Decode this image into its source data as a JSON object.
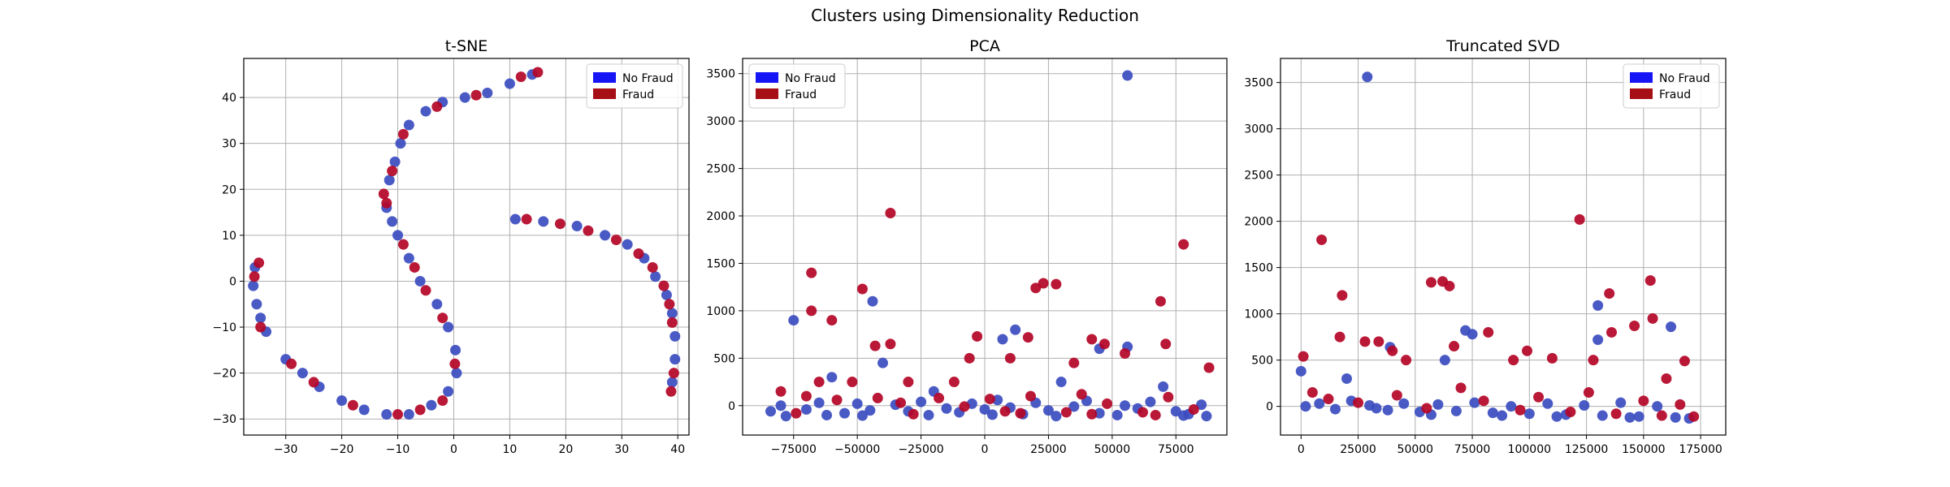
{
  "figure": {
    "suptitle": "Clusters using Dimensionality Reduction"
  },
  "colors": {
    "no_fraud": "#1515f5",
    "fraud": "#a50f15",
    "no_fraud_point": "#3b4cc0",
    "fraud_point": "#b40426",
    "grid": "#b0b0b0"
  },
  "chart_data": [
    {
      "type": "scatter",
      "title": "t-SNE",
      "xlabel": "",
      "ylabel": "",
      "xlim": [
        -37.5,
        42
      ],
      "ylim": [
        -33.5,
        48.5
      ],
      "xticks": [
        -30,
        -20,
        -10,
        0,
        10,
        20,
        30,
        40
      ],
      "yticks": [
        -30,
        -20,
        -10,
        0,
        10,
        20,
        30,
        40
      ],
      "grid": true,
      "legend": {
        "position": "top-right",
        "entries": [
          "No Fraud",
          "Fraud"
        ]
      },
      "series": [
        {
          "name": "No Fraud",
          "points": [
            [
              -35.5,
              3
            ],
            [
              -35.8,
              -1
            ],
            [
              -35.2,
              -5
            ],
            [
              -34.5,
              -8
            ],
            [
              -33.5,
              -11
            ],
            [
              -30,
              -17
            ],
            [
              -27,
              -20
            ],
            [
              -24,
              -23
            ],
            [
              -20,
              -26
            ],
            [
              -16,
              -28
            ],
            [
              -12,
              -29
            ],
            [
              -8,
              -29
            ],
            [
              -4,
              -27
            ],
            [
              -1,
              -24
            ],
            [
              0.5,
              -20
            ],
            [
              0.3,
              -15
            ],
            [
              -1,
              -10
            ],
            [
              -3,
              -5
            ],
            [
              -6,
              0
            ],
            [
              -8,
              5
            ],
            [
              -10,
              10
            ],
            [
              -11,
              13
            ],
            [
              -12,
              16
            ],
            [
              -11.5,
              22
            ],
            [
              -10.5,
              26
            ],
            [
              -9.5,
              30
            ],
            [
              -8,
              34
            ],
            [
              -5,
              37
            ],
            [
              -2,
              39
            ],
            [
              2,
              40
            ],
            [
              6,
              41
            ],
            [
              10,
              43
            ],
            [
              14,
              45
            ],
            [
              11,
              13.5
            ],
            [
              16,
              13
            ],
            [
              22,
              12
            ],
            [
              27,
              10
            ],
            [
              31,
              8
            ],
            [
              34,
              5
            ],
            [
              36,
              1
            ],
            [
              38,
              -3
            ],
            [
              39,
              -7
            ],
            [
              39.5,
              -12
            ],
            [
              39.5,
              -17
            ],
            [
              39,
              -22
            ]
          ]
        },
        {
          "name": "Fraud",
          "points": [
            [
              -34.8,
              4
            ],
            [
              -35.6,
              1
            ],
            [
              -34.5,
              -10
            ],
            [
              -29,
              -18
            ],
            [
              -25,
              -22
            ],
            [
              -18,
              -27
            ],
            [
              -10,
              -29
            ],
            [
              -6,
              -28
            ],
            [
              -2,
              -26
            ],
            [
              0.2,
              -18
            ],
            [
              -2,
              -8
            ],
            [
              -5,
              -2
            ],
            [
              -7,
              3
            ],
            [
              -9,
              8
            ],
            [
              -12.5,
              19
            ],
            [
              -12,
              17
            ],
            [
              -11,
              24
            ],
            [
              -9,
              32
            ],
            [
              -3,
              38
            ],
            [
              4,
              40.5
            ],
            [
              12,
              44.5
            ],
            [
              15,
              45.5
            ],
            [
              13,
              13.5
            ],
            [
              19,
              12.5
            ],
            [
              24,
              11
            ],
            [
              29,
              9
            ],
            [
              33,
              6
            ],
            [
              35.5,
              3
            ],
            [
              37.5,
              -1
            ],
            [
              38.5,
              -5
            ],
            [
              39,
              -9
            ],
            [
              39.3,
              -20
            ],
            [
              38.8,
              -24
            ]
          ]
        }
      ]
    },
    {
      "type": "scatter",
      "title": "PCA",
      "xlabel": "",
      "ylabel": "",
      "xlim": [
        -95000,
        95000
      ],
      "ylim": [
        -310,
        3660
      ],
      "xticks": [
        -75000,
        -50000,
        -25000,
        0,
        25000,
        50000,
        75000
      ],
      "yticks": [
        0,
        500,
        1000,
        1500,
        2000,
        2500,
        3000,
        3500
      ],
      "grid": true,
      "legend": {
        "position": "top-left",
        "entries": [
          "No Fraud",
          "Fraud"
        ]
      },
      "series": [
        {
          "name": "No Fraud",
          "points": [
            [
              56000,
              3480
            ],
            [
              -75000,
              900
            ],
            [
              -44000,
              1100
            ],
            [
              12000,
              800
            ],
            [
              7000,
              700
            ],
            [
              45000,
              600
            ],
            [
              56000,
              620
            ],
            [
              -60000,
              300
            ],
            [
              -40000,
              450
            ],
            [
              -20000,
              150
            ],
            [
              30000,
              250
            ],
            [
              70000,
              200
            ],
            [
              -80000,
              0
            ],
            [
              -70000,
              -40
            ],
            [
              -65000,
              30
            ],
            [
              -55000,
              -80
            ],
            [
              -50000,
              20
            ],
            [
              -45000,
              -50
            ],
            [
              -35000,
              10
            ],
            [
              -30000,
              -60
            ],
            [
              -25000,
              40
            ],
            [
              -15000,
              -30
            ],
            [
              -10000,
              -70
            ],
            [
              -5000,
              20
            ],
            [
              0,
              -40
            ],
            [
              5000,
              60
            ],
            [
              10000,
              -20
            ],
            [
              15000,
              -90
            ],
            [
              20000,
              30
            ],
            [
              25000,
              -50
            ],
            [
              35000,
              -10
            ],
            [
              40000,
              50
            ],
            [
              45000,
              -80
            ],
            [
              55000,
              0
            ],
            [
              60000,
              -30
            ],
            [
              65000,
              40
            ],
            [
              75000,
              -60
            ],
            [
              80000,
              -90
            ],
            [
              85000,
              10
            ],
            [
              -78000,
              -110
            ],
            [
              -62000,
              -100
            ],
            [
              -48000,
              -105
            ],
            [
              -22000,
              -100
            ],
            [
              3000,
              -95
            ],
            [
              28000,
              -110
            ],
            [
              52000,
              -100
            ],
            [
              78000,
              -105
            ],
            [
              87000,
              -110
            ],
            [
              -84000,
              -60
            ]
          ]
        },
        {
          "name": "Fraud",
          "points": [
            [
              -37000,
              2030
            ],
            [
              78000,
              1700
            ],
            [
              -68000,
              1400
            ],
            [
              -68000,
              1000
            ],
            [
              -48000,
              1230
            ],
            [
              23000,
              1290
            ],
            [
              28000,
              1280
            ],
            [
              20000,
              1240
            ],
            [
              69000,
              1100
            ],
            [
              -60000,
              900
            ],
            [
              17000,
              720
            ],
            [
              -3000,
              730
            ],
            [
              42000,
              700
            ],
            [
              -37000,
              650
            ],
            [
              -43000,
              630
            ],
            [
              47000,
              650
            ],
            [
              71000,
              650
            ],
            [
              -6000,
              500
            ],
            [
              -12000,
              250
            ],
            [
              35000,
              450
            ],
            [
              -65000,
              250
            ],
            [
              -52000,
              250
            ],
            [
              -80000,
              150
            ],
            [
              -30000,
              250
            ],
            [
              10000,
              500
            ],
            [
              88000,
              400
            ],
            [
              55000,
              550
            ],
            [
              -70000,
              100
            ],
            [
              -58000,
              60
            ],
            [
              -42000,
              80
            ],
            [
              -33000,
              30
            ],
            [
              -18000,
              80
            ],
            [
              -8000,
              -10
            ],
            [
              2000,
              70
            ],
            [
              8000,
              -60
            ],
            [
              18000,
              100
            ],
            [
              32000,
              -70
            ],
            [
              38000,
              120
            ],
            [
              48000,
              20
            ],
            [
              62000,
              -70
            ],
            [
              72000,
              90
            ],
            [
              82000,
              -40
            ],
            [
              -74000,
              -80
            ],
            [
              -28000,
              -90
            ],
            [
              14000,
              -80
            ],
            [
              42000,
              -90
            ],
            [
              67000,
              -100
            ]
          ]
        }
      ]
    },
    {
      "type": "scatter",
      "title": "Truncated SVD",
      "xlabel": "",
      "ylabel": "",
      "xlim": [
        -9000,
        186000
      ],
      "ylim": [
        -310,
        3760
      ],
      "xticks": [
        0,
        25000,
        50000,
        75000,
        100000,
        125000,
        150000,
        175000
      ],
      "yticks": [
        0,
        500,
        1000,
        1500,
        2000,
        2500,
        3000,
        3500
      ],
      "grid": true,
      "legend": {
        "position": "top-right",
        "entries": [
          "No Fraud",
          "Fraud"
        ]
      },
      "series": [
        {
          "name": "No Fraud",
          "points": [
            [
              29000,
              3560
            ],
            [
              130000,
              1090
            ],
            [
              162000,
              860
            ],
            [
              72000,
              820
            ],
            [
              130000,
              720
            ],
            [
              63000,
              500
            ],
            [
              75000,
              780
            ],
            [
              39000,
              640
            ],
            [
              20000,
              300
            ],
            [
              0,
              380
            ],
            [
              2000,
              0
            ],
            [
              8000,
              30
            ],
            [
              15000,
              -30
            ],
            [
              22000,
              60
            ],
            [
              30000,
              10
            ],
            [
              38000,
              -40
            ],
            [
              45000,
              30
            ],
            [
              52000,
              -60
            ],
            [
              60000,
              20
            ],
            [
              68000,
              -50
            ],
            [
              76000,
              40
            ],
            [
              84000,
              -70
            ],
            [
              92000,
              0
            ],
            [
              100000,
              -80
            ],
            [
              108000,
              30
            ],
            [
              116000,
              -90
            ],
            [
              124000,
              10
            ],
            [
              132000,
              -100
            ],
            [
              140000,
              40
            ],
            [
              148000,
              -110
            ],
            [
              156000,
              0
            ],
            [
              164000,
              -120
            ],
            [
              170000,
              -130
            ],
            [
              33000,
              -20
            ],
            [
              57000,
              -90
            ],
            [
              88000,
              -100
            ],
            [
              112000,
              -110
            ],
            [
              144000,
              -120
            ]
          ]
        },
        {
          "name": "Fraud",
          "points": [
            [
              122000,
              2020
            ],
            [
              9000,
              1800
            ],
            [
              18000,
              1200
            ],
            [
              57000,
              1340
            ],
            [
              62000,
              1350
            ],
            [
              65000,
              1300
            ],
            [
              153000,
              1360
            ],
            [
              135000,
              1220
            ],
            [
              154000,
              950
            ],
            [
              146000,
              870
            ],
            [
              17000,
              750
            ],
            [
              34000,
              700
            ],
            [
              28000,
              700
            ],
            [
              40000,
              600
            ],
            [
              67000,
              650
            ],
            [
              82000,
              800
            ],
            [
              110000,
              520
            ],
            [
              93000,
              500
            ],
            [
              168000,
              490
            ],
            [
              99000,
              600
            ],
            [
              1000,
              540
            ],
            [
              46000,
              500
            ],
            [
              128000,
              500
            ],
            [
              136000,
              800
            ],
            [
              160000,
              300
            ],
            [
              5000,
              150
            ],
            [
              12000,
              80
            ],
            [
              25000,
              40
            ],
            [
              42000,
              120
            ],
            [
              55000,
              -20
            ],
            [
              70000,
              200
            ],
            [
              80000,
              60
            ],
            [
              96000,
              -40
            ],
            [
              104000,
              100
            ],
            [
              118000,
              -60
            ],
            [
              126000,
              150
            ],
            [
              138000,
              -80
            ],
            [
              150000,
              60
            ],
            [
              158000,
              -100
            ],
            [
              166000,
              20
            ],
            [
              172000,
              -110
            ]
          ]
        }
      ]
    }
  ]
}
